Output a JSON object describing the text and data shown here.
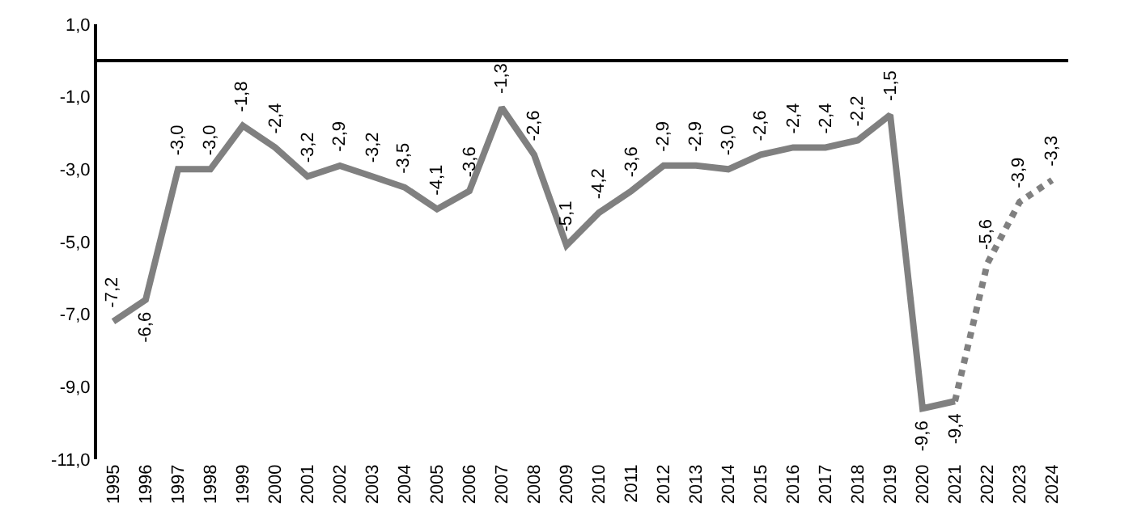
{
  "chart_data": {
    "type": "line",
    "categories": [
      "1995",
      "1996",
      "1997",
      "1998",
      "1999",
      "2000",
      "2001",
      "2002",
      "2003",
      "2004",
      "2005",
      "2006",
      "2007",
      "2008",
      "2009",
      "2010",
      "2011",
      "2012",
      "2013",
      "2014",
      "2015",
      "2016",
      "2017",
      "2018",
      "2019",
      "2020",
      "2021",
      "2022",
      "2023",
      "2024"
    ],
    "series": [
      {
        "color": "#808080",
        "line_style": "solid",
        "values": [
          -7.2,
          -6.6,
          -3.0,
          -3.0,
          -1.8,
          -2.4,
          -3.2,
          -2.9,
          -3.2,
          -3.5,
          -4.1,
          -3.6,
          -1.3,
          -2.6,
          -5.1,
          -4.2,
          -3.6,
          -2.9,
          -2.9,
          -3.0,
          -2.6,
          -2.4,
          -2.4,
          -2.2,
          -1.5,
          -9.6,
          -9.4,
          null,
          null,
          null
        ],
        "value_labels": [
          "-7,2",
          "-6,6",
          "-3,0",
          "-3,0",
          "-1,8",
          "-2,4",
          "-3,2",
          "-2,9",
          "-3,2",
          "-3,5",
          "-4,1",
          "-3,6",
          "-1,3",
          "-2,6",
          "-5,1",
          "-4,2",
          "-3,6",
          "-2,9",
          "-2,9",
          "-3,0",
          "-2,6",
          "-2,4",
          "-2,4",
          "-2,2",
          "-1,5",
          "-9,6",
          "-9,4",
          null,
          null,
          null
        ]
      },
      {
        "color": "#808080",
        "line_style": "dotted",
        "values": [
          null,
          null,
          null,
          null,
          null,
          null,
          null,
          null,
          null,
          null,
          null,
          null,
          null,
          null,
          null,
          null,
          null,
          null,
          null,
          null,
          null,
          null,
          null,
          null,
          null,
          null,
          -9.4,
          -5.6,
          -3.9,
          -3.3
        ],
        "value_labels": [
          null,
          null,
          null,
          null,
          null,
          null,
          null,
          null,
          null,
          null,
          null,
          null,
          null,
          null,
          null,
          null,
          null,
          null,
          null,
          null,
          null,
          null,
          null,
          null,
          null,
          null,
          null,
          "-5,6",
          "-3,9",
          "-3,3"
        ]
      }
    ],
    "ylim": [
      -11,
      1
    ],
    "yticks": [
      {
        "value": 1,
        "label": "1,0"
      },
      {
        "value": -1,
        "label": "-1,0"
      },
      {
        "value": -3,
        "label": "-3,0"
      },
      {
        "value": -5,
        "label": "-5,0"
      },
      {
        "value": -7,
        "label": "-7,0"
      },
      {
        "value": -9,
        "label": "-9,0"
      },
      {
        "value": -11,
        "label": "-11,0"
      }
    ],
    "legend": false,
    "marker": "none"
  }
}
